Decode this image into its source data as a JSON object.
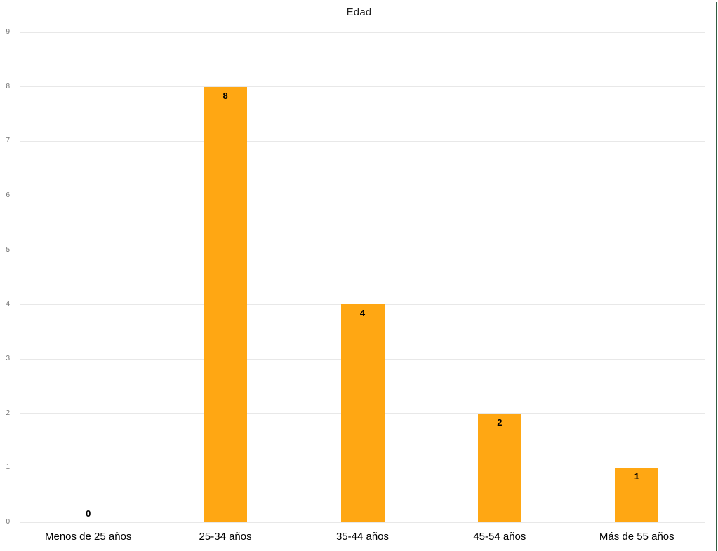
{
  "chart_data": {
    "type": "bar",
    "title": "Edad",
    "categories": [
      "Menos de 25 años",
      "25-34 años",
      "35-44 años",
      "45-54 años",
      "Más de 55 años"
    ],
    "values": [
      0,
      8,
      4,
      2,
      1
    ],
    "data_labels": [
      "0",
      "8",
      "4",
      "2",
      "1"
    ],
    "xlabel": "",
    "ylabel": "",
    "ylim": [
      0,
      9
    ],
    "yticks": [
      0,
      1,
      2,
      3,
      4,
      5,
      6,
      7,
      8,
      9
    ],
    "grid": true,
    "legend_position": "none",
    "bar_color": "#ffa713",
    "gridline_color": "#e8e8e8",
    "y_tick_label_color": "#757575",
    "category_label_color": "#000000",
    "data_label_color": "#000000",
    "title_color": "#1f1f1f"
  },
  "frame": {
    "right_edge_color": "#315c40"
  }
}
